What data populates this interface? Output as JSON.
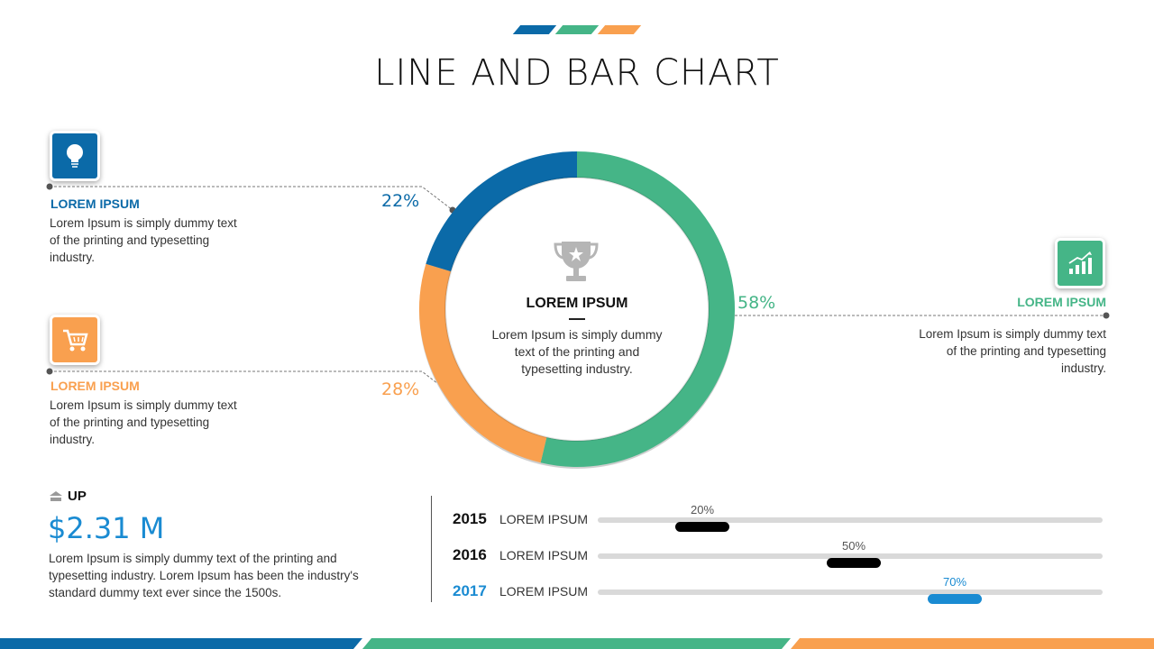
{
  "title": "LINE AND BAR CHART",
  "colors": {
    "blue": "#0b6aa8",
    "green": "#45b587",
    "orange": "#f9a04f",
    "bright_blue": "#1a8bd2"
  },
  "left_items": [
    {
      "heading": "LOREM IPSUM",
      "text_lines": [
        "Lorem Ipsum is simply dummy text",
        "of the printing and typesetting",
        "industry."
      ],
      "percent": "22%",
      "icon": "lightbulb-icon"
    },
    {
      "heading": "LOREM IPSUM",
      "text_lines": [
        "Lorem Ipsum is simply dummy text",
        "of the printing and typesetting",
        "industry."
      ],
      "percent": "28%",
      "icon": "shopping-cart-icon"
    }
  ],
  "right_item": {
    "heading": "LOREM IPSUM",
    "text_lines": [
      "Lorem Ipsum is simply dummy text",
      "of the printing and typesetting",
      "industry."
    ],
    "percent": "58%",
    "icon": "growth-chart-icon"
  },
  "center": {
    "heading": "LOREM IPSUM",
    "text_lines": [
      "Lorem Ipsum is simply dummy",
      "text of the printing and",
      "typesetting industry."
    ],
    "icon": "trophy-icon"
  },
  "stat": {
    "label": "UP",
    "value": "$2.31 M",
    "text_lines": [
      "Lorem Ipsum is simply dummy text of the printing and",
      "typesetting industry. Lorem Ipsum has been the industry's",
      "standard dummy text ever since the 1500s."
    ]
  },
  "progress_rows": [
    {
      "year": "2015",
      "label": "LOREM IPSUM",
      "percent": "20%",
      "value": 0.2
    },
    {
      "year": "2016",
      "label": "LOREM IPSUM",
      "percent": "50%",
      "value": 0.5
    },
    {
      "year": "2017",
      "label": "LOREM IPSUM",
      "percent": "70%",
      "value": 0.7
    }
  ],
  "chart_data": {
    "type": "pie",
    "categories": [
      "",
      "",
      ""
    ],
    "values": [
      58,
      28,
      22
    ],
    "labels": [
      "58%",
      "28%",
      "22%"
    ],
    "colors": [
      "#45b587",
      "#f9a04f",
      "#0b6aa8"
    ],
    "style": "donut"
  }
}
